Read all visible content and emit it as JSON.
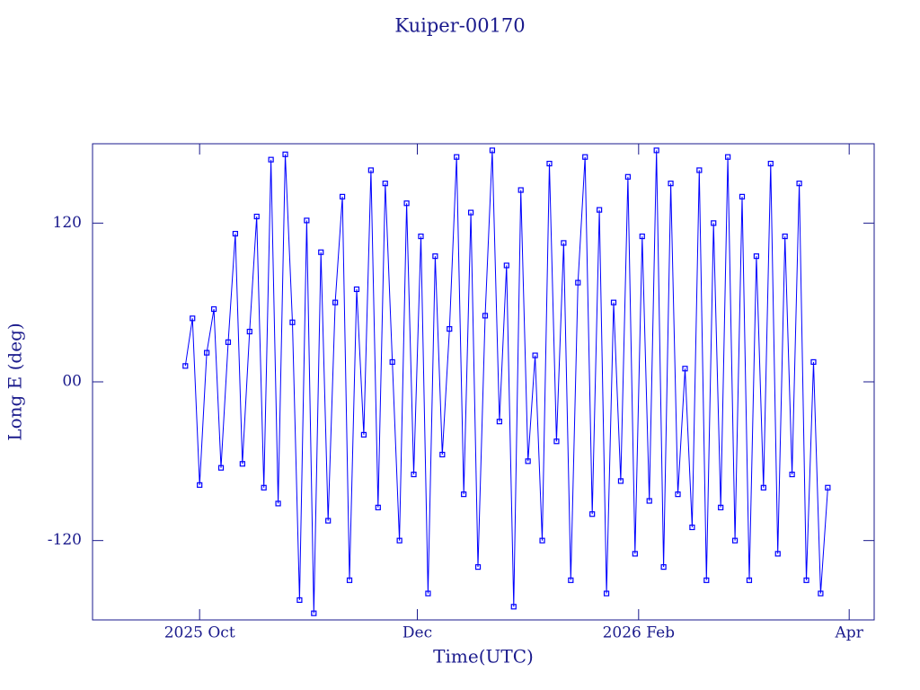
{
  "chart_data": {
    "type": "line",
    "title": "Kuiper-00170",
    "xlabel": "Time(UTC)",
    "ylabel": "Long E (deg)",
    "xlim": [
      "2025-09-01",
      "2026-04-08"
    ],
    "xticks": [
      {
        "value": "2025-10-01",
        "label": "2025 Oct"
      },
      {
        "value": "2025-12-01",
        "label": "Dec"
      },
      {
        "value": "2026-02-01",
        "label": "2026 Feb"
      },
      {
        "value": "2026-04-01",
        "label": "Apr"
      }
    ],
    "ylim": [
      -180,
      180
    ],
    "yticks": [
      -120,
      {
        "value": 0,
        "label": "00"
      },
      120
    ],
    "markers": true,
    "series": [
      {
        "name": "Kuiper-00170",
        "color": "#0000ff",
        "x": [
          "2025-09-27",
          "2025-09-29",
          "2025-10-01",
          "2025-10-03",
          "2025-10-05",
          "2025-10-07",
          "2025-10-09",
          "2025-10-11",
          "2025-10-13",
          "2025-10-15",
          "2025-10-17",
          "2025-10-19",
          "2025-10-21",
          "2025-10-23",
          "2025-10-25",
          "2025-10-27",
          "2025-10-29",
          "2025-10-31",
          "2025-11-02",
          "2025-11-04",
          "2025-11-06",
          "2025-11-08",
          "2025-11-10",
          "2025-11-12",
          "2025-11-14",
          "2025-11-16",
          "2025-11-18",
          "2025-11-20",
          "2025-11-22",
          "2025-11-24",
          "2025-11-26",
          "2025-11-28",
          "2025-11-30",
          "2025-12-02",
          "2025-12-04",
          "2025-12-06",
          "2025-12-08",
          "2025-12-10",
          "2025-12-12",
          "2025-12-14",
          "2025-12-16",
          "2025-12-18",
          "2025-12-20",
          "2025-12-22",
          "2025-12-24",
          "2025-12-26",
          "2025-12-28",
          "2025-12-30",
          "2026-01-01",
          "2026-01-03",
          "2026-01-05",
          "2026-01-07",
          "2026-01-09",
          "2026-01-11",
          "2026-01-13",
          "2026-01-15",
          "2026-01-17",
          "2026-01-19",
          "2026-01-21",
          "2026-01-23",
          "2026-01-25",
          "2026-01-27",
          "2026-01-29",
          "2026-01-31",
          "2026-02-02",
          "2026-02-04",
          "2026-02-06",
          "2026-02-08",
          "2026-02-10",
          "2026-02-12",
          "2026-02-14",
          "2026-02-16",
          "2026-02-18",
          "2026-02-20",
          "2026-02-22",
          "2026-02-24",
          "2026-02-26",
          "2026-02-28",
          "2026-03-02",
          "2026-03-04",
          "2026-03-06",
          "2026-03-08",
          "2026-03-10",
          "2026-03-12",
          "2026-03-14",
          "2026-03-16",
          "2026-03-18",
          "2026-03-20",
          "2026-03-22",
          "2026-03-24",
          "2026-03-26"
        ],
        "values": [
          12,
          48,
          -78,
          22,
          55,
          -65,
          30,
          112,
          -62,
          38,
          125,
          -80,
          168,
          -92,
          172,
          45,
          -165,
          122,
          -175,
          98,
          -105,
          60,
          140,
          -150,
          70,
          -40,
          160,
          -95,
          150,
          15,
          -120,
          135,
          -70,
          110,
          -160,
          95,
          -55,
          40,
          170,
          -85,
          128,
          -140,
          50,
          175,
          -30,
          88,
          -170,
          145,
          -60,
          20,
          -120,
          165,
          -45,
          105,
          -150,
          75,
          170,
          -100,
          130,
          -160,
          60,
          -75,
          155,
          -130,
          110,
          -90,
          175,
          -140,
          150,
          -85,
          10,
          -110,
          160,
          -150,
          120,
          -95,
          170,
          -120,
          140,
          -150,
          95,
          -80,
          165,
          -130,
          110,
          -70,
          150,
          -150,
          15,
          -160,
          -80
        ]
      }
    ]
  }
}
